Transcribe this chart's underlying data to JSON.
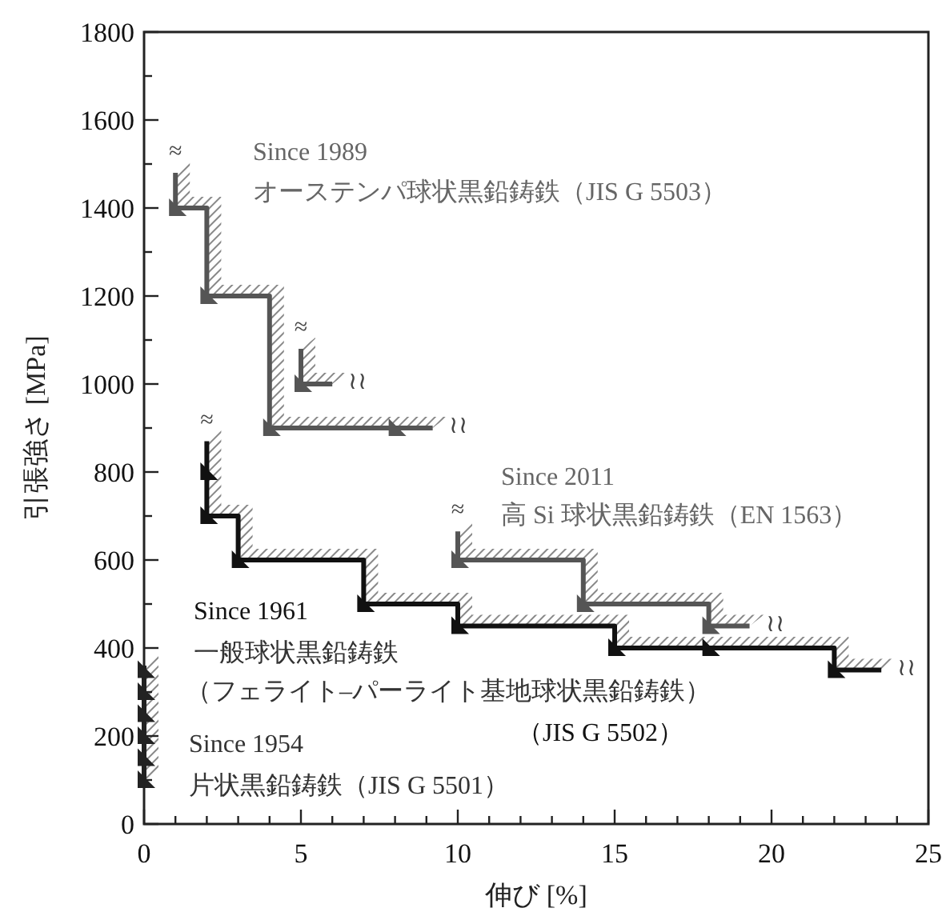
{
  "chart_data": {
    "type": "step",
    "xlabel": "伸び [%]",
    "ylabel": "引張強さ [MPa]",
    "xlim": [
      0,
      25
    ],
    "ylim": [
      0,
      1800
    ],
    "xticks": [
      0,
      {
        "value": 1,
        "label": null
      },
      {
        "value": 2,
        "label": null
      },
      {
        "value": 3,
        "label": null
      },
      {
        "value": 4,
        "label": null
      },
      5,
      {
        "value": 6,
        "label": null
      },
      {
        "value": 7,
        "label": null
      },
      {
        "value": 8,
        "label": null
      },
      {
        "value": 9,
        "label": null
      },
      10,
      {
        "value": 11,
        "label": null
      },
      {
        "value": 12,
        "label": null
      },
      {
        "value": 13,
        "label": null
      },
      {
        "value": 14,
        "label": null
      },
      15,
      {
        "value": 16,
        "label": null
      },
      {
        "value": 17,
        "label": null
      },
      {
        "value": 18,
        "label": null
      },
      {
        "value": 19,
        "label": null
      },
      20,
      {
        "value": 21,
        "label": null
      },
      {
        "value": 22,
        "label": null
      },
      {
        "value": 23,
        "label": null
      },
      {
        "value": 24,
        "label": null
      },
      25
    ],
    "yticks": [
      0,
      {
        "value": 100,
        "label": null
      },
      200,
      {
        "value": 300,
        "label": null
      },
      400,
      {
        "value": 500,
        "label": null
      },
      600,
      {
        "value": 700,
        "label": null
      },
      800,
      {
        "value": 900,
        "label": null
      },
      1000,
      {
        "value": 1100,
        "label": null
      },
      1200,
      {
        "value": 1300,
        "label": null
      },
      1400,
      {
        "value": 1500,
        "label": null
      },
      1600,
      {
        "value": 1700,
        "label": null
      },
      1800
    ],
    "grid": false,
    "series": [
      {
        "color": "#555555",
        "x": [
          1,
          1,
          2,
          4,
          9.2
        ],
        "values": [
          1480,
          1400,
          1200,
          900,
          900
        ]
      },
      {
        "color": "#555555",
        "x": [
          5,
          5,
          6
        ],
        "values": [
          1080,
          1000,
          1000
        ]
      },
      {
        "type": "scatter",
        "marker": "triangle",
        "color": "#555555",
        "x": [
          1,
          2,
          4,
          8,
          5
        ],
        "values": [
          1400,
          1200,
          900,
          900,
          1000
        ]
      },
      {
        "color": "#111111",
        "x": [
          2,
          2,
          3,
          7,
          10,
          15,
          22,
          23.5
        ],
        "values": [
          870,
          700,
          600,
          500,
          450,
          400,
          350,
          350
        ]
      },
      {
        "type": "scatter",
        "marker": "triangle",
        "color": "#111111",
        "x": [
          2,
          2,
          3,
          7,
          10,
          15,
          18,
          22
        ],
        "values": [
          800,
          700,
          600,
          500,
          450,
          400,
          400,
          350
        ]
      },
      {
        "color": "#555555",
        "x": [
          10,
          10,
          14,
          18,
          19.3
        ],
        "values": [
          665,
          600,
          500,
          450,
          450
        ]
      },
      {
        "type": "scatter",
        "marker": "triangle",
        "color": "#555555",
        "x": [
          10,
          14,
          18
        ],
        "values": [
          600,
          500,
          450
        ]
      },
      {
        "color": "#222222",
        "x": [
          0,
          0
        ],
        "values": [
          360,
          90
        ]
      },
      {
        "type": "scatter",
        "marker": "triangle",
        "color": "#222222",
        "x": [
          0,
          0,
          0,
          0,
          0,
          0
        ],
        "values": [
          100,
          150,
          200,
          250,
          300,
          350
        ]
      }
    ],
    "annotations": [
      "Since 1989",
      "オーステンパ球状黒鉛鋳鉄（JIS G 5503）",
      "Since 2011",
      "高 Si 球状黒鉛鋳鉄（EN 1563）",
      "Since 1961",
      "一般球状黒鉛鋳鉄",
      "（フェライト–パーライト基地球状黒鉛鋳鉄）",
      "（JIS G 5502）",
      "Since 1954",
      "片状黒鉛鋳鉄（JIS G 5501）",
      {
        "text": "≈",
        "x": 1,
        "y": 1480
      },
      {
        "text": "≈",
        "x": 5,
        "y": 1080
      },
      {
        "text": "≈",
        "x": 2,
        "y": 870
      },
      {
        "text": "≈",
        "x": 10,
        "y": 665
      },
      {
        "text": "≀≀",
        "x": 9.2,
        "y": 900
      },
      {
        "text": "≀≀",
        "x": 6,
        "y": 1000
      },
      {
        "text": "≀≀",
        "x": 19.3,
        "y": 450
      },
      {
        "text": "≀≀",
        "x": 23.5,
        "y": 350
      }
    ]
  }
}
